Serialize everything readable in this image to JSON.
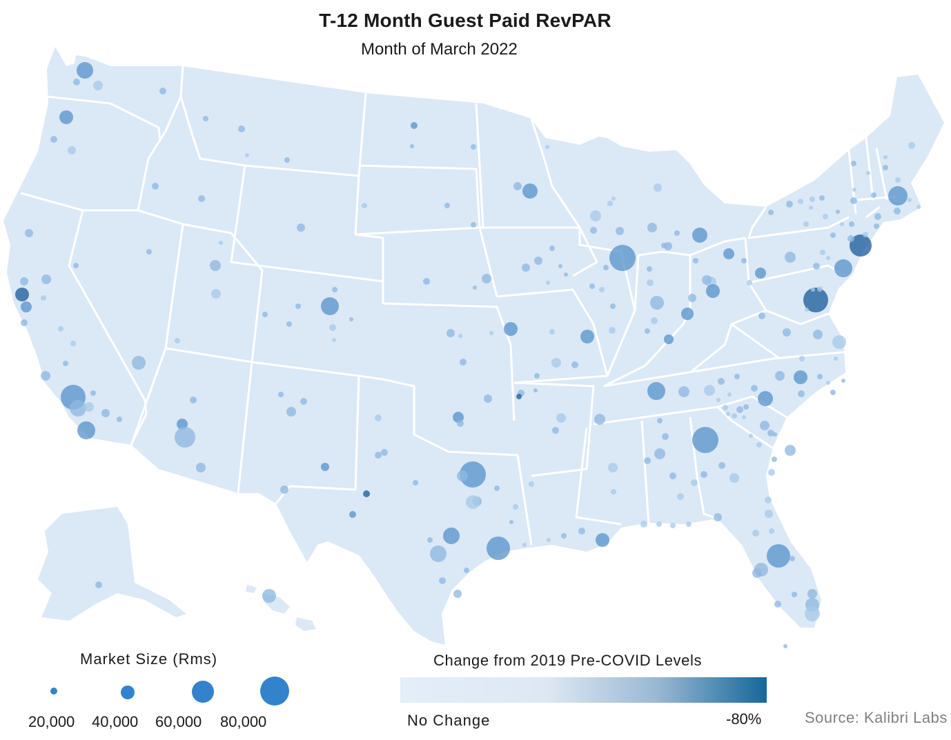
{
  "title": "T-12 Month Guest Paid RevPAR",
  "subtitle": "Month of March 2022",
  "colors": {
    "land": "#dbe8f6",
    "borders": "#ffffff",
    "dot_light": "#a9cbe9",
    "dot_mid": "#5b95cc",
    "dot_dark": "#1f5f9c",
    "gradient_start": "#e3eef9",
    "gradient_end": "#15689a",
    "size_legend": "#3282cc"
  },
  "legend_size": {
    "title": "Market Size (Rms)",
    "items": [
      {
        "label": "20,000",
        "value": 20000
      },
      {
        "label": "40,000",
        "value": 40000
      },
      {
        "label": "60,000",
        "value": 60000
      },
      {
        "label": "80,000",
        "value": 80000
      }
    ]
  },
  "legend_color": {
    "title": "Change from 2019 Pre-COVID Levels",
    "low_label": "No Change",
    "high_label": "-80%"
  },
  "source": "Source: Kalibri Labs"
}
